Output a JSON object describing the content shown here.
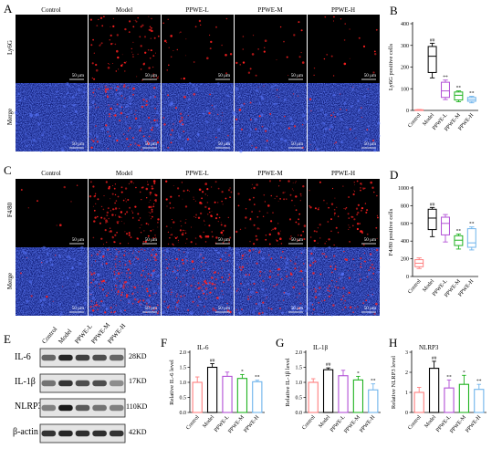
{
  "micro": {
    "columns": [
      "Control",
      "Model",
      "PPWE-L",
      "PPWE-M",
      "PPWE-H"
    ],
    "panelA": {
      "letter": "A",
      "rows": [
        "Ly6G",
        "Merge"
      ]
    },
    "panelC": {
      "letter": "C",
      "rows": [
        "F4/80",
        "Merge"
      ]
    },
    "scale_bar": "50 μm",
    "colors": {
      "red_channel": "#ff2020",
      "dapi": "#1a2fd6",
      "background": "#000000"
    },
    "signal_density": {
      "Ly6G": [
        0.0,
        0.35,
        0.12,
        0.1,
        0.08
      ],
      "F4_80": [
        0.03,
        0.6,
        0.45,
        0.35,
        0.35
      ]
    }
  },
  "western": {
    "letter": "E",
    "lanes": [
      "Control",
      "Model",
      "PPWE-L",
      "PPWE-M",
      "PPWE-H"
    ],
    "proteins": [
      "IL-6",
      "IL-1β",
      "NLRP3",
      "β-actin"
    ],
    "sizes": [
      "28KD",
      "17KD",
      "110KD",
      "42KD"
    ]
  },
  "chart_data": [
    {
      "panel": "B",
      "type": "box",
      "ylabel": "Ly6G positive cells",
      "ylim": [
        0,
        400
      ],
      "yticks": [
        0,
        100,
        200,
        300,
        400
      ],
      "categories": [
        "Control",
        "Model",
        "PPWE-L",
        "PPWE-M",
        "PPWE-H"
      ],
      "colors": [
        "#ff7f7f",
        "#000000",
        "#b24fd6",
        "#1fb21f",
        "#6fb4ec"
      ],
      "boxes": [
        {
          "min": 0,
          "q1": 0,
          "median": 1,
          "q3": 3,
          "max": 4
        },
        {
          "min": 150,
          "q1": 175,
          "median": 250,
          "q3": 295,
          "max": 310
        },
        {
          "min": 50,
          "q1": 60,
          "median": 90,
          "q3": 130,
          "max": 140
        },
        {
          "min": 40,
          "q1": 48,
          "median": 70,
          "q3": 85,
          "max": 90
        },
        {
          "min": 35,
          "q1": 42,
          "median": 50,
          "q3": 60,
          "max": 65
        }
      ],
      "significance": [
        "",
        "##",
        "**",
        "**",
        "**"
      ]
    },
    {
      "panel": "D",
      "type": "box",
      "ylabel": "F4/80 positive cells",
      "ylim": [
        0,
        1000
      ],
      "yticks": [
        0,
        200,
        400,
        600,
        800,
        1000
      ],
      "categories": [
        "Control",
        "Model",
        "PPWE-L",
        "PPWE-M",
        "PPWE-H"
      ],
      "colors": [
        "#ff7f7f",
        "#000000",
        "#b24fd6",
        "#1fb21f",
        "#6fb4ec"
      ],
      "boxes": [
        {
          "min": 90,
          "q1": 110,
          "median": 150,
          "q3": 190,
          "max": 210
        },
        {
          "min": 450,
          "q1": 530,
          "median": 660,
          "q3": 760,
          "max": 780
        },
        {
          "min": 390,
          "q1": 470,
          "median": 600,
          "q3": 670,
          "max": 700
        },
        {
          "min": 310,
          "q1": 350,
          "median": 410,
          "q3": 460,
          "max": 480
        },
        {
          "min": 300,
          "q1": 330,
          "median": 380,
          "q3": 540,
          "max": 560
        }
      ],
      "significance": [
        "",
        "##",
        "",
        "**",
        "**"
      ]
    },
    {
      "panel": "F",
      "type": "bar",
      "title": "IL-6",
      "ylabel": "Relative IL-6 level",
      "ylim": [
        0,
        2.0
      ],
      "yticks": [
        0.0,
        0.5,
        1.0,
        1.5,
        2.0
      ],
      "categories": [
        "Control",
        "Model",
        "PPWE-L",
        "PPWE-M",
        "PPWE-H"
      ],
      "colors": [
        "#ff7f7f",
        "#000000",
        "#b24fd6",
        "#1fb21f",
        "#6fb4ec"
      ],
      "values": [
        1.0,
        1.5,
        1.2,
        1.13,
        1.02
      ],
      "errors": [
        0.18,
        0.12,
        0.14,
        0.13,
        0.05
      ],
      "significance": [
        "",
        "##",
        "",
        "*",
        "**"
      ]
    },
    {
      "panel": "G",
      "type": "bar",
      "title": "IL-1β",
      "ylabel": "Relative IL-1β level",
      "ylim": [
        0,
        2.0
      ],
      "yticks": [
        0.0,
        0.5,
        1.0,
        1.5,
        2.0
      ],
      "categories": [
        "Control",
        "Model",
        "PPWE-L",
        "PPWE-M",
        "PPWE-H"
      ],
      "colors": [
        "#ff7f7f",
        "#000000",
        "#b24fd6",
        "#1fb21f",
        "#6fb4ec"
      ],
      "values": [
        1.0,
        1.42,
        1.22,
        1.08,
        0.75
      ],
      "errors": [
        0.12,
        0.06,
        0.18,
        0.12,
        0.2
      ],
      "significance": [
        "",
        "##",
        "",
        "*",
        "**"
      ]
    },
    {
      "panel": "H",
      "type": "bar",
      "title": "NLRP3",
      "ylabel": "Relative NLRP3 level",
      "ylim": [
        0,
        3
      ],
      "yticks": [
        0,
        1,
        2,
        3
      ],
      "categories": [
        "Control",
        "Model",
        "PPWE-L",
        "PPWE-M",
        "PPWE-H"
      ],
      "colors": [
        "#ff7f7f",
        "#000000",
        "#b24fd6",
        "#1fb21f",
        "#6fb4ec"
      ],
      "values": [
        1.0,
        2.2,
        1.22,
        1.4,
        1.15
      ],
      "errors": [
        0.25,
        0.35,
        0.4,
        0.45,
        0.25
      ],
      "significance": [
        "",
        "##",
        "**",
        "*",
        "**"
      ]
    }
  ]
}
